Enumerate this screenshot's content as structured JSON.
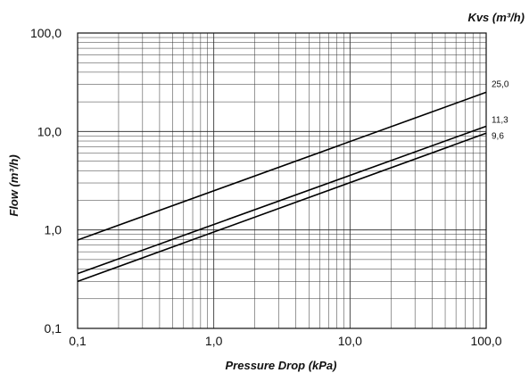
{
  "chart_data": {
    "type": "line",
    "title": "",
    "xlabel": "Pressure Drop (kPa)",
    "ylabel": "Flow (m³/h)",
    "legend_title": "Kvs (m³/h)",
    "x_scale": "log",
    "y_scale": "log",
    "xlim": [
      0.1,
      100
    ],
    "ylim": [
      0.1,
      100
    ],
    "grid": true,
    "x_ticks": [
      0.1,
      1,
      10,
      100
    ],
    "x_tick_labels": [
      "0,1",
      "1,0",
      "10,0",
      "100,0"
    ],
    "y_ticks": [
      0.1,
      1,
      10,
      100
    ],
    "y_tick_labels": [
      "0,1",
      "1,0",
      "10,0",
      "100,0"
    ],
    "series": [
      {
        "label": "25,0",
        "x": [
          0.1,
          100
        ],
        "y": [
          0.79,
          25.0
        ]
      },
      {
        "label": "11,3",
        "x": [
          0.1,
          100
        ],
        "y": [
          0.36,
          11.3
        ]
      },
      {
        "label": "9,6",
        "x": [
          0.1,
          100
        ],
        "y": [
          0.3,
          9.6
        ]
      }
    ]
  }
}
